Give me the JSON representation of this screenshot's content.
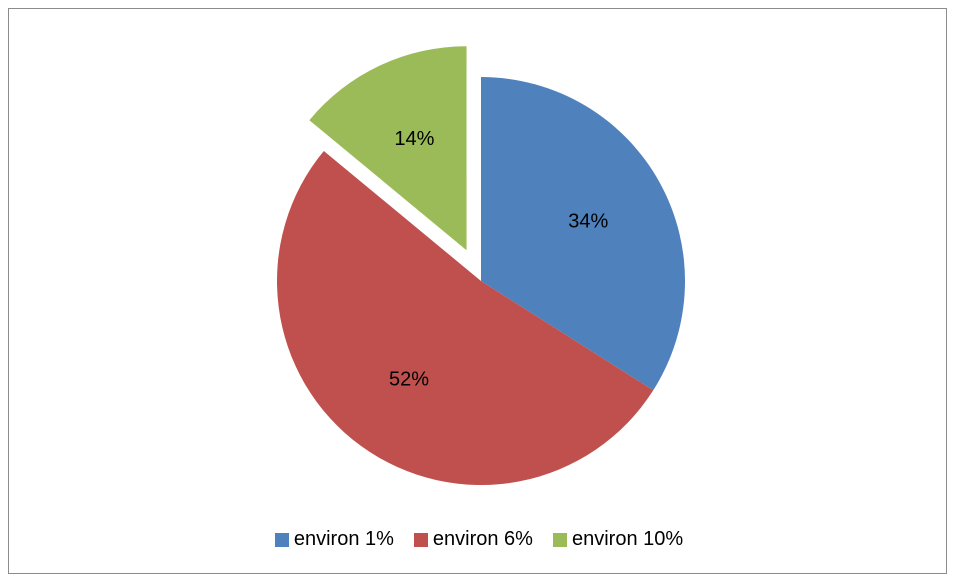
{
  "chart_data": {
    "type": "pie",
    "categories": [
      "environ 1%",
      "environ 6%",
      "environ 10%"
    ],
    "values": [
      34,
      52,
      14
    ],
    "value_labels": [
      "34%",
      "52%",
      "14%"
    ],
    "colors": [
      "#4F81BD",
      "#C0504D",
      "#9BBB59"
    ],
    "exploded": [
      false,
      false,
      true
    ],
    "start_angle_deg": 0,
    "direction": "clockwise",
    "legend_position": "bottom",
    "title": ""
  },
  "legend": {
    "items": [
      {
        "label": "environ 1%",
        "color": "#4F81BD"
      },
      {
        "label": "environ 6%",
        "color": "#C0504D"
      },
      {
        "label": "environ 10%",
        "color": "#9BBB59"
      }
    ]
  }
}
